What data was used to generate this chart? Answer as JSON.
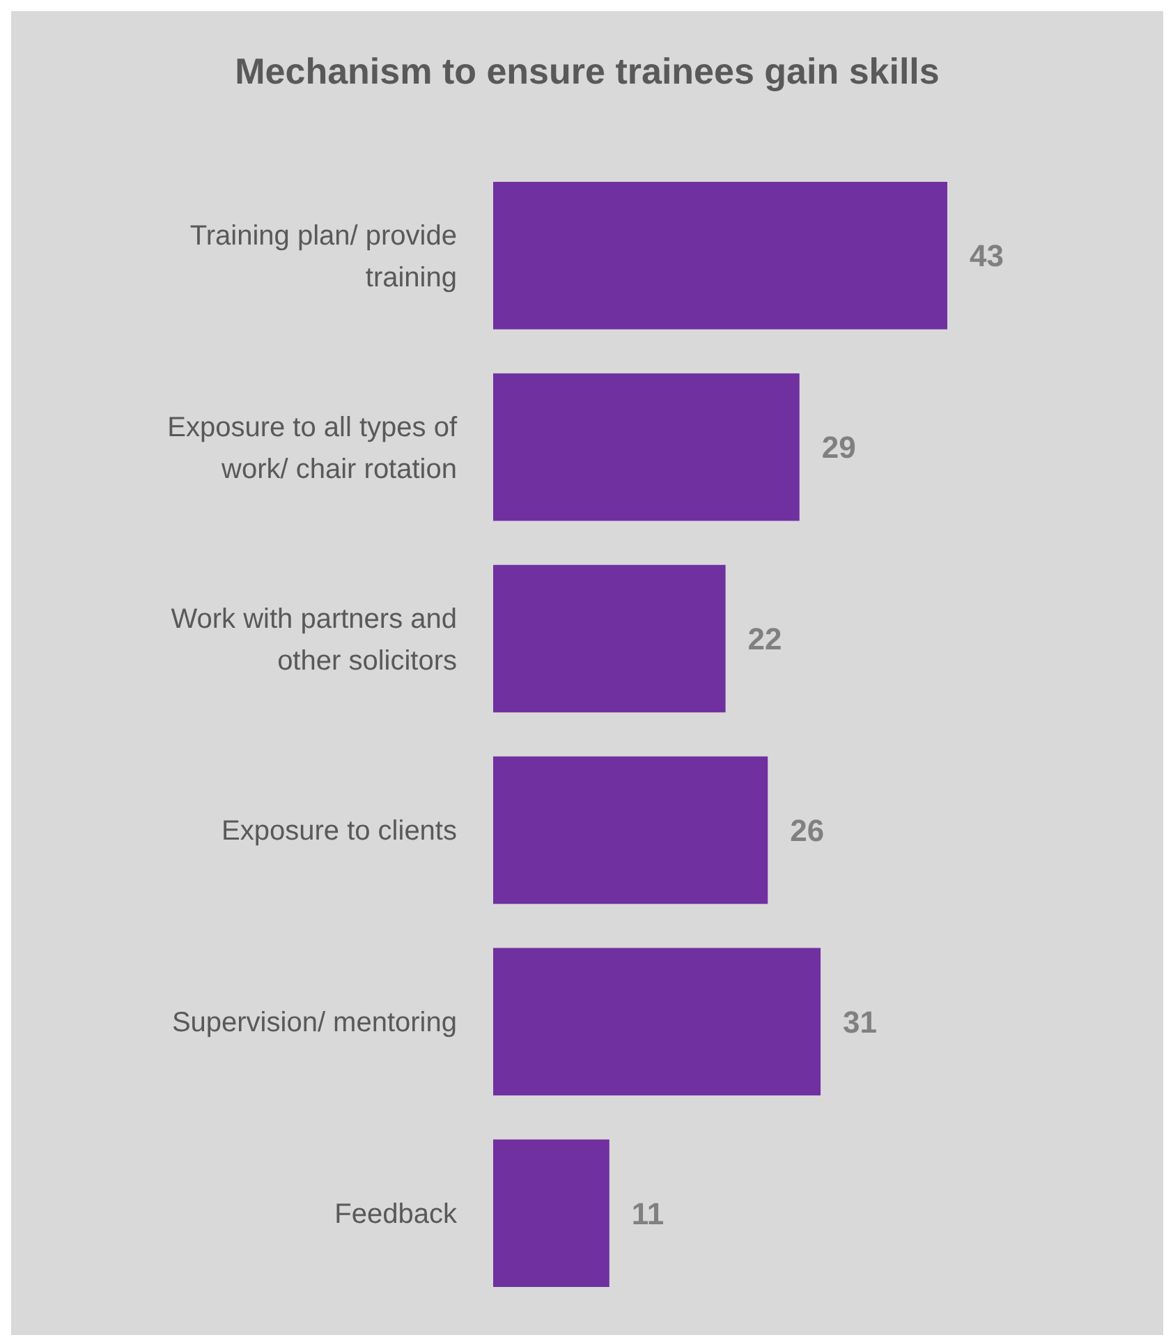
{
  "chart_data": {
    "type": "bar",
    "orientation": "horizontal",
    "title": "Mechanism to ensure trainees gain skills",
    "categories": [
      "Training plan/ provide training",
      "Exposure to all types of work/ chair rotation",
      "Work with partners and other solicitors",
      "Exposure to clients",
      "Supervision/ mentoring",
      "Feedback"
    ],
    "values": [
      43,
      29,
      22,
      26,
      31,
      11
    ],
    "color": "#7030a0",
    "data_labels": true
  }
}
